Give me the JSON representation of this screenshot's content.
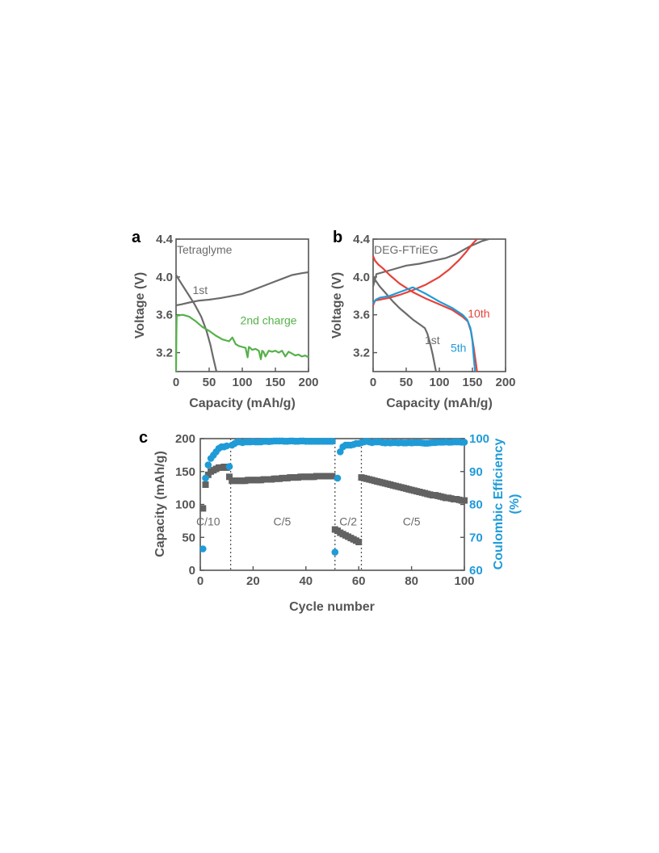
{
  "chart_data": [
    {
      "panel": "a",
      "type": "line",
      "xlabel": "Capacity (mAh/g)",
      "ylabel": "Voltage (V)",
      "xlim": [
        0,
        200
      ],
      "ylim": [
        3.0,
        4.4
      ],
      "xticks": [
        "0",
        "50",
        "100",
        "150",
        "200"
      ],
      "yticks": [
        "3.2",
        "3.6",
        "4.0",
        "4.4"
      ],
      "inset_label": "Tetraglyme",
      "series": [
        {
          "name": "1st",
          "color": "#6b6b6b",
          "x": [
            0,
            8,
            20,
            35,
            50,
            60,
            70,
            85,
            100,
            115,
            130,
            145,
            160,
            175,
            190,
            200
          ],
          "y": [
            3.7,
            3.71,
            3.73,
            3.75,
            3.76,
            3.77,
            3.78,
            3.8,
            3.82,
            3.86,
            3.9,
            3.94,
            3.98,
            4.02,
            4.04,
            4.05
          ]
        },
        {
          "name": "",
          "color": "#6b6b6b",
          "x": [
            0,
            8,
            18,
            28,
            38,
            46,
            52,
            56,
            59,
            61
          ],
          "y": [
            4.02,
            3.93,
            3.82,
            3.71,
            3.58,
            3.43,
            3.28,
            3.15,
            3.06,
            3.0
          ]
        },
        {
          "name": "2nd charge",
          "color": "#55b14a",
          "x": [
            0,
            0.5,
            1,
            10,
            20,
            30,
            40,
            50,
            60,
            70,
            80,
            85,
            90,
            95,
            100,
            105,
            108,
            110,
            112,
            115,
            120,
            125,
            128,
            130,
            132,
            135,
            140,
            145,
            150,
            155,
            160,
            165,
            170,
            175,
            180,
            185,
            190,
            195,
            200
          ],
          "y": [
            3.0,
            3.4,
            3.59,
            3.6,
            3.58,
            3.53,
            3.47,
            3.43,
            3.38,
            3.34,
            3.32,
            3.36,
            3.29,
            3.27,
            3.26,
            3.25,
            3.15,
            3.26,
            3.25,
            3.23,
            3.24,
            3.22,
            3.13,
            3.22,
            3.21,
            3.16,
            3.22,
            3.21,
            3.22,
            3.2,
            3.22,
            3.16,
            3.21,
            3.19,
            3.17,
            3.18,
            3.16,
            3.17,
            3.15
          ]
        }
      ],
      "annotations": [
        {
          "text": "1st",
          "x": 25,
          "y": 3.82,
          "color": "#6b6b6b"
        },
        {
          "text": "2nd charge",
          "x": 97,
          "y": 3.5,
          "color": "#55b14a"
        }
      ]
    },
    {
      "panel": "b",
      "type": "line",
      "xlabel": "Capacity (mAh/g)",
      "ylabel": "Voltage (V)",
      "xlim": [
        0,
        200
      ],
      "ylim": [
        3.0,
        4.4
      ],
      "xticks": [
        "0",
        "50",
        "100",
        "150",
        "200"
      ],
      "yticks": [
        "3.2",
        "3.6",
        "4.0",
        "4.4"
      ],
      "inset_label": "DEG-FTriEG",
      "series": [
        {
          "name": "1st",
          "color": "#6b6b6b",
          "x": [
            0,
            5,
            15,
            30,
            50,
            70,
            90,
            110,
            125,
            135,
            145,
            155,
            165,
            175
          ],
          "y": [
            3.9,
            4.03,
            4.05,
            4.08,
            4.12,
            4.14,
            4.17,
            4.2,
            4.24,
            4.28,
            4.32,
            4.35,
            4.38,
            4.4
          ]
        },
        {
          "name": "",
          "color": "#6b6b6b",
          "x": [
            0,
            10,
            20,
            30,
            40,
            50,
            60,
            70,
            78,
            82,
            86,
            90,
            93,
            95
          ],
          "y": [
            4.0,
            3.9,
            3.82,
            3.74,
            3.67,
            3.61,
            3.55,
            3.5,
            3.46,
            3.4,
            3.3,
            3.18,
            3.07,
            3.0
          ]
        },
        {
          "name": "10th",
          "color": "#e5423a",
          "x": [
            0,
            3,
            10,
            25,
            40,
            60,
            80,
            100,
            115,
            130,
            140,
            150,
            157
          ],
          "y": [
            3.7,
            3.75,
            3.76,
            3.78,
            3.81,
            3.86,
            3.92,
            4.0,
            4.08,
            4.18,
            4.26,
            4.35,
            4.4
          ]
        },
        {
          "name": "",
          "color": "#e5423a",
          "x": [
            0,
            3,
            8,
            15,
            25,
            40,
            60,
            80,
            100,
            120,
            135,
            143,
            148,
            152,
            155,
            157
          ],
          "y": [
            4.22,
            4.17,
            4.13,
            4.09,
            4.02,
            3.93,
            3.84,
            3.77,
            3.71,
            3.65,
            3.58,
            3.53,
            3.42,
            3.25,
            3.1,
            3.0
          ]
        },
        {
          "name": "5th",
          "color": "#1f9bd7",
          "x": [
            0,
            4,
            10,
            25,
            40,
            60,
            80,
            100,
            120,
            135,
            142,
            147,
            150,
            152,
            154
          ],
          "y": [
            3.72,
            3.76,
            3.78,
            3.8,
            3.84,
            3.89,
            3.82,
            3.74,
            3.67,
            3.6,
            3.55,
            3.46,
            3.32,
            3.15,
            3.0
          ]
        }
      ],
      "annotations": [
        {
          "text": "1st",
          "x": 78,
          "y": 3.29,
          "color": "#6b6b6b"
        },
        {
          "text": "10th",
          "x": 143,
          "y": 3.57,
          "color": "#e5423a"
        },
        {
          "text": "5th",
          "x": 117,
          "y": 3.21,
          "color": "#1f9bd7"
        }
      ]
    },
    {
      "panel": "c",
      "type": "scatter",
      "xlabel": "Cycle number",
      "ylabel": "Capacity (mAh/g)",
      "y2label_lines": [
        "Coulombic Efficiency",
        "(%)"
      ],
      "xlim": [
        0,
        100
      ],
      "ylim": [
        0,
        200
      ],
      "y2lim": [
        60,
        100
      ],
      "xticks": [
        "0",
        "20",
        "40",
        "60",
        "80",
        "100"
      ],
      "yticks": [
        "0",
        "50",
        "100",
        "150",
        "200"
      ],
      "y2ticks": [
        "60",
        "70",
        "80",
        "90",
        "100"
      ],
      "rate_dividers": [
        11.5,
        51,
        61
      ],
      "rate_labels": [
        {
          "text": "C/10",
          "x": 3,
          "y": 68
        },
        {
          "text": "C/5",
          "x": 31,
          "y": 68
        },
        {
          "text": "C/2",
          "x": 56,
          "y": 68
        },
        {
          "text": "C/5",
          "x": 80,
          "y": 68
        }
      ],
      "series": [
        {
          "name": "Capacity",
          "color": "#626262",
          "marker": "square",
          "x": [
            1,
            2,
            3,
            4,
            5,
            6,
            7,
            8,
            9,
            10,
            11,
            12,
            13,
            14,
            15,
            16,
            17,
            18,
            19,
            20,
            21,
            22,
            23,
            24,
            25,
            26,
            27,
            28,
            29,
            30,
            31,
            32,
            33,
            34,
            35,
            36,
            37,
            38,
            39,
            40,
            41,
            42,
            43,
            44,
            45,
            46,
            47,
            48,
            49,
            50,
            51,
            52,
            53,
            54,
            55,
            56,
            57,
            58,
            59,
            60,
            61,
            62,
            63,
            64,
            65,
            66,
            67,
            68,
            69,
            70,
            71,
            72,
            73,
            74,
            75,
            76,
            77,
            78,
            79,
            80,
            81,
            82,
            83,
            84,
            85,
            86,
            87,
            88,
            89,
            90,
            91,
            92,
            93,
            94,
            95,
            96,
            97,
            98,
            99,
            100
          ],
          "y": [
            94,
            130,
            145,
            150,
            152,
            154,
            156,
            156,
            157,
            156,
            142,
            136,
            136,
            136,
            136,
            136,
            136,
            137,
            137,
            137,
            137,
            137,
            137,
            138,
            138,
            138,
            138,
            139,
            139,
            139,
            140,
            140,
            140,
            141,
            141,
            141,
            141,
            142,
            142,
            142,
            142,
            142,
            142,
            143,
            143,
            143,
            143,
            143,
            143,
            143,
            62,
            60,
            57,
            55,
            53,
            51,
            49,
            47,
            45,
            43,
            141,
            140,
            139,
            138,
            137,
            136,
            135,
            134,
            133,
            132,
            131,
            130,
            129,
            128,
            127,
            126,
            125,
            124,
            123,
            122,
            121,
            120,
            119,
            118,
            117,
            116,
            115,
            114,
            114,
            113,
            112,
            111,
            110,
            110,
            109,
            108,
            108,
            107,
            106,
            106
          ]
        },
        {
          "name": "Coulombic Efficiency",
          "color": "#1f9bd7",
          "marker": "circle",
          "axis": "y2",
          "x": [
            1,
            2,
            3,
            4,
            5,
            6,
            7,
            8,
            9,
            10,
            11,
            12,
            13,
            14,
            15,
            16,
            17,
            18,
            19,
            20,
            21,
            22,
            23,
            24,
            25,
            26,
            27,
            28,
            29,
            30,
            31,
            32,
            33,
            34,
            35,
            36,
            37,
            38,
            39,
            40,
            41,
            42,
            43,
            44,
            45,
            46,
            47,
            48,
            49,
            50,
            51,
            52,
            53,
            54,
            55,
            56,
            57,
            58,
            59,
            60,
            61,
            62,
            63,
            64,
            65,
            66,
            67,
            68,
            69,
            70,
            71,
            72,
            73,
            74,
            75,
            76,
            77,
            78,
            79,
            80,
            81,
            82,
            83,
            84,
            85,
            86,
            87,
            88,
            89,
            90,
            91,
            92,
            93,
            94,
            95,
            96,
            97,
            98,
            99,
            100
          ],
          "y": [
            66.5,
            88,
            92,
            94,
            95,
            96,
            97,
            97.5,
            97.5,
            97.8,
            91.5,
            98,
            98.5,
            99,
            99,
            98.8,
            99,
            99,
            99,
            99.1,
            99,
            99,
            99,
            99.2,
            99.2,
            99.1,
            99.2,
            99.3,
            99.3,
            99.3,
            99.3,
            99.2,
            99.2,
            99.3,
            99.3,
            99.2,
            99.2,
            99.3,
            99.3,
            99.2,
            99.2,
            99.2,
            99.2,
            99.2,
            99.2,
            99.2,
            99.2,
            99.2,
            99.2,
            99.2,
            65.5,
            88,
            96,
            97.5,
            98,
            98,
            98,
            98.2,
            98.5,
            98.5,
            98.8,
            99,
            99.2,
            99,
            98.8,
            99,
            99,
            99,
            98.8,
            98.7,
            98.8,
            98.7,
            98.8,
            98.8,
            98.7,
            98.8,
            98.7,
            98.7,
            98.8,
            98.7,
            98.8,
            98.8,
            98.8,
            98.7,
            98.6,
            98.6,
            98.7,
            98.8,
            98.8,
            98.9,
            98.9,
            98.9,
            99,
            98.9,
            98.9,
            99,
            99,
            99,
            98.9,
            98.9
          ]
        }
      ]
    }
  ]
}
